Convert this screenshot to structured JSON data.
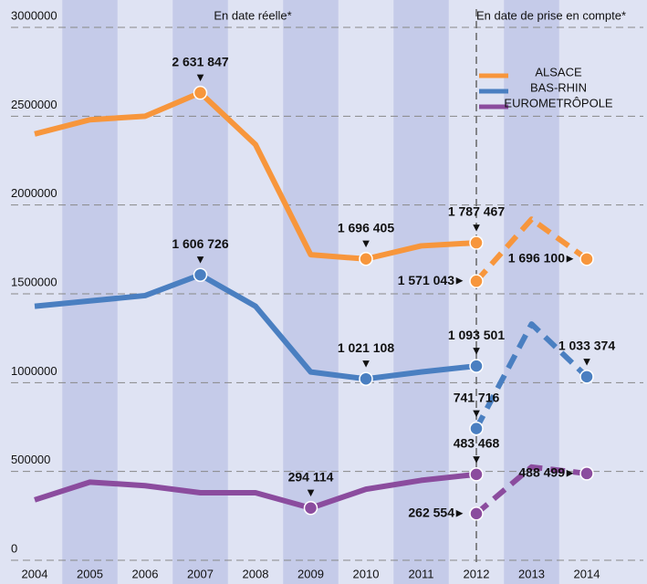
{
  "chart_data": {
    "type": "line",
    "annotations": [
      "En date réelle*",
      "En date de prise en compte*"
    ],
    "categories": [
      "2004",
      "2005",
      "2006",
      "2007",
      "2008",
      "2009",
      "2010",
      "2011",
      "2012",
      "2013",
      "2014"
    ],
    "ylim": [
      0,
      3000000
    ],
    "yticks": [
      0,
      500000,
      1000000,
      1500000,
      2000000,
      2500000,
      3000000
    ],
    "grid": true,
    "legend": "upper right",
    "series": [
      {
        "name": "ALSACE",
        "color": "#f7963c",
        "values": [
          2400000,
          2480000,
          2500000,
          2631847,
          2340000,
          1720000,
          1696405,
          1770000,
          1787467,
          null,
          null
        ],
        "value_labels": [
          null,
          null,
          null,
          "2 631 847",
          null,
          null,
          "1 696 405",
          null,
          "1 787 467",
          null,
          null
        ],
        "values_prise_en_compte": [
          null,
          null,
          null,
          null,
          null,
          null,
          null,
          null,
          1571043,
          1920000,
          1696100
        ],
        "value_labels_prise_en_compte": [
          null,
          null,
          null,
          null,
          null,
          null,
          null,
          null,
          "1 571 043",
          null,
          "1 696 100"
        ]
      },
      {
        "name": "BAS-RHIN",
        "color": "#4a7fc1",
        "values": [
          1430000,
          1460000,
          1490000,
          1606726,
          1430000,
          1060000,
          1021108,
          1060000,
          1093501,
          null,
          null
        ],
        "value_labels": [
          null,
          null,
          null,
          "1 606 726",
          null,
          null,
          "1 021 108",
          null,
          "1 093 501",
          null,
          null
        ],
        "values_prise_en_compte": [
          null,
          null,
          null,
          null,
          null,
          null,
          null,
          null,
          741716,
          1330000,
          1033374
        ],
        "value_labels_prise_en_compte": [
          null,
          null,
          null,
          null,
          null,
          null,
          null,
          null,
          "741 716",
          null,
          "1 033 374"
        ]
      },
      {
        "name": "EUROMETRÔPOLE",
        "color": "#8b4c9e",
        "values": [
          340000,
          440000,
          420000,
          380000,
          380000,
          294114,
          400000,
          450000,
          483468,
          null,
          null
        ],
        "value_labels": [
          null,
          null,
          null,
          null,
          null,
          "294 114",
          null,
          null,
          "483 468",
          null,
          null
        ],
        "values_prise_en_compte": [
          null,
          null,
          null,
          null,
          null,
          null,
          null,
          null,
          262554,
          525000,
          488499
        ],
        "value_labels_prise_en_compte": [
          null,
          null,
          null,
          null,
          null,
          null,
          null,
          null,
          "262 554",
          null,
          "488 499"
        ]
      }
    ]
  }
}
